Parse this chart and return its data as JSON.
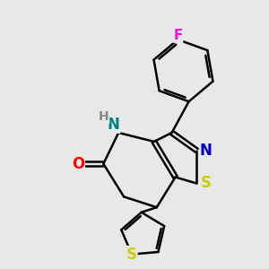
{
  "background_color": "#e8e8e8",
  "bond_color": "#000000",
  "bond_width": 1.8,
  "atom_colors": {
    "N": "#0000cc",
    "NH": "#008080",
    "O": "#ff0000",
    "S": "#cccc00",
    "F": "#ff00ff",
    "C": "#000000"
  },
  "font_size_atom": 12,
  "dbo": 0.12
}
